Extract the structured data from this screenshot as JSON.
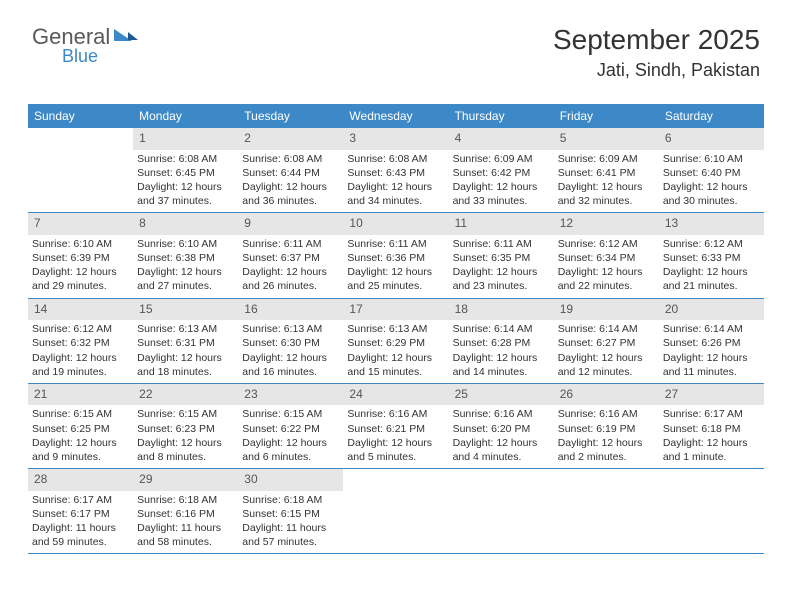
{
  "brand": {
    "general": "General",
    "blue": "Blue"
  },
  "header": {
    "title": "September 2025",
    "location": "Jati, Sindh, Pakistan"
  },
  "weekdays": [
    "Sunday",
    "Monday",
    "Tuesday",
    "Wednesday",
    "Thursday",
    "Friday",
    "Saturday"
  ],
  "colors": {
    "header_bar": "#3d88c6",
    "daynum_bg": "#e6e6e6",
    "text": "#333333",
    "logo_blue": "#3d88c6",
    "logo_gray": "#5a5a5a"
  },
  "weeks": [
    [
      null,
      {
        "n": "1",
        "r": "Sunrise: 6:08 AM",
        "s": "Sunset: 6:45 PM",
        "d": "Daylight: 12 hours and 37 minutes."
      },
      {
        "n": "2",
        "r": "Sunrise: 6:08 AM",
        "s": "Sunset: 6:44 PM",
        "d": "Daylight: 12 hours and 36 minutes."
      },
      {
        "n": "3",
        "r": "Sunrise: 6:08 AM",
        "s": "Sunset: 6:43 PM",
        "d": "Daylight: 12 hours and 34 minutes."
      },
      {
        "n": "4",
        "r": "Sunrise: 6:09 AM",
        "s": "Sunset: 6:42 PM",
        "d": "Daylight: 12 hours and 33 minutes."
      },
      {
        "n": "5",
        "r": "Sunrise: 6:09 AM",
        "s": "Sunset: 6:41 PM",
        "d": "Daylight: 12 hours and 32 minutes."
      },
      {
        "n": "6",
        "r": "Sunrise: 6:10 AM",
        "s": "Sunset: 6:40 PM",
        "d": "Daylight: 12 hours and 30 minutes."
      }
    ],
    [
      {
        "n": "7",
        "r": "Sunrise: 6:10 AM",
        "s": "Sunset: 6:39 PM",
        "d": "Daylight: 12 hours and 29 minutes."
      },
      {
        "n": "8",
        "r": "Sunrise: 6:10 AM",
        "s": "Sunset: 6:38 PM",
        "d": "Daylight: 12 hours and 27 minutes."
      },
      {
        "n": "9",
        "r": "Sunrise: 6:11 AM",
        "s": "Sunset: 6:37 PM",
        "d": "Daylight: 12 hours and 26 minutes."
      },
      {
        "n": "10",
        "r": "Sunrise: 6:11 AM",
        "s": "Sunset: 6:36 PM",
        "d": "Daylight: 12 hours and 25 minutes."
      },
      {
        "n": "11",
        "r": "Sunrise: 6:11 AM",
        "s": "Sunset: 6:35 PM",
        "d": "Daylight: 12 hours and 23 minutes."
      },
      {
        "n": "12",
        "r": "Sunrise: 6:12 AM",
        "s": "Sunset: 6:34 PM",
        "d": "Daylight: 12 hours and 22 minutes."
      },
      {
        "n": "13",
        "r": "Sunrise: 6:12 AM",
        "s": "Sunset: 6:33 PM",
        "d": "Daylight: 12 hours and 21 minutes."
      }
    ],
    [
      {
        "n": "14",
        "r": "Sunrise: 6:12 AM",
        "s": "Sunset: 6:32 PM",
        "d": "Daylight: 12 hours and 19 minutes."
      },
      {
        "n": "15",
        "r": "Sunrise: 6:13 AM",
        "s": "Sunset: 6:31 PM",
        "d": "Daylight: 12 hours and 18 minutes."
      },
      {
        "n": "16",
        "r": "Sunrise: 6:13 AM",
        "s": "Sunset: 6:30 PM",
        "d": "Daylight: 12 hours and 16 minutes."
      },
      {
        "n": "17",
        "r": "Sunrise: 6:13 AM",
        "s": "Sunset: 6:29 PM",
        "d": "Daylight: 12 hours and 15 minutes."
      },
      {
        "n": "18",
        "r": "Sunrise: 6:14 AM",
        "s": "Sunset: 6:28 PM",
        "d": "Daylight: 12 hours and 14 minutes."
      },
      {
        "n": "19",
        "r": "Sunrise: 6:14 AM",
        "s": "Sunset: 6:27 PM",
        "d": "Daylight: 12 hours and 12 minutes."
      },
      {
        "n": "20",
        "r": "Sunrise: 6:14 AM",
        "s": "Sunset: 6:26 PM",
        "d": "Daylight: 12 hours and 11 minutes."
      }
    ],
    [
      {
        "n": "21",
        "r": "Sunrise: 6:15 AM",
        "s": "Sunset: 6:25 PM",
        "d": "Daylight: 12 hours and 9 minutes."
      },
      {
        "n": "22",
        "r": "Sunrise: 6:15 AM",
        "s": "Sunset: 6:23 PM",
        "d": "Daylight: 12 hours and 8 minutes."
      },
      {
        "n": "23",
        "r": "Sunrise: 6:15 AM",
        "s": "Sunset: 6:22 PM",
        "d": "Daylight: 12 hours and 6 minutes."
      },
      {
        "n": "24",
        "r": "Sunrise: 6:16 AM",
        "s": "Sunset: 6:21 PM",
        "d": "Daylight: 12 hours and 5 minutes."
      },
      {
        "n": "25",
        "r": "Sunrise: 6:16 AM",
        "s": "Sunset: 6:20 PM",
        "d": "Daylight: 12 hours and 4 minutes."
      },
      {
        "n": "26",
        "r": "Sunrise: 6:16 AM",
        "s": "Sunset: 6:19 PM",
        "d": "Daylight: 12 hours and 2 minutes."
      },
      {
        "n": "27",
        "r": "Sunrise: 6:17 AM",
        "s": "Sunset: 6:18 PM",
        "d": "Daylight: 12 hours and 1 minute."
      }
    ],
    [
      {
        "n": "28",
        "r": "Sunrise: 6:17 AM",
        "s": "Sunset: 6:17 PM",
        "d": "Daylight: 11 hours and 59 minutes."
      },
      {
        "n": "29",
        "r": "Sunrise: 6:18 AM",
        "s": "Sunset: 6:16 PM",
        "d": "Daylight: 11 hours and 58 minutes."
      },
      {
        "n": "30",
        "r": "Sunrise: 6:18 AM",
        "s": "Sunset: 6:15 PM",
        "d": "Daylight: 11 hours and 57 minutes."
      },
      null,
      null,
      null,
      null
    ]
  ]
}
